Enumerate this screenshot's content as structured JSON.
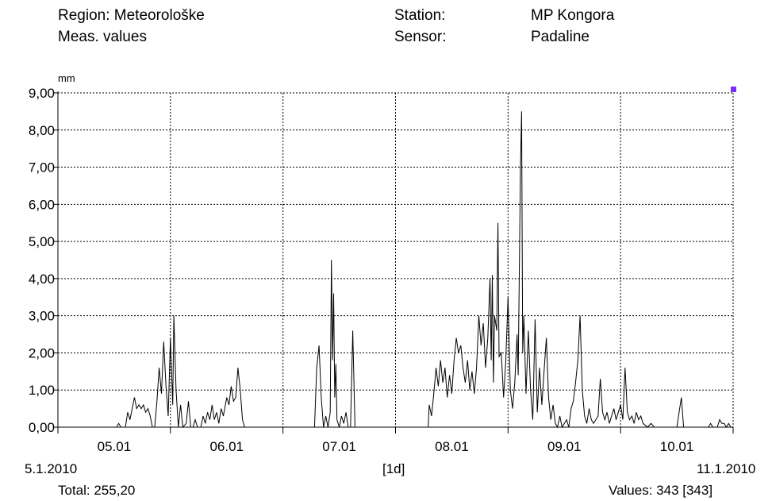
{
  "header": {
    "region_label": "Region:",
    "region_value": "Meteorološke",
    "meas_label": "Meas. values",
    "station_label": "Station:",
    "station_value": "MP Kongora",
    "sensor_label": "Sensor:",
    "sensor_value": "Padaline"
  },
  "footer": {
    "start_date": "5.1.2010",
    "end_date": "11.1.2010",
    "interval": "[1d]",
    "total": "Total: 255,20",
    "values": "Values: 343 [343]"
  },
  "colors": {
    "line": "#000000",
    "grid": "#000000",
    "marker": "#7b2cff"
  },
  "chart_data": {
    "type": "line",
    "ylabel": "mm",
    "ylim": [
      0,
      9
    ],
    "xlim_days": [
      0,
      6
    ],
    "yticks": [
      "0,00",
      "1,00",
      "2,00",
      "3,00",
      "4,00",
      "5,00",
      "6,00",
      "7,00",
      "8,00",
      "9,00"
    ],
    "xticks": [
      {
        "day": 0.5,
        "label": "05.01"
      },
      {
        "day": 1.5,
        "label": "06.01"
      },
      {
        "day": 2.5,
        "label": "07.01"
      },
      {
        "day": 3.5,
        "label": "08.01"
      },
      {
        "day": 4.5,
        "label": "09.01"
      },
      {
        "day": 5.5,
        "label": "10.01"
      }
    ],
    "grid": true,
    "series": [
      {
        "points": [
          [
            0,
            0
          ],
          [
            0.52,
            0
          ],
          [
            0.54,
            0.1
          ],
          [
            0.56,
            0
          ],
          [
            0.6,
            0
          ],
          [
            0.62,
            0.4
          ],
          [
            0.64,
            0.2
          ],
          [
            0.66,
            0.5
          ],
          [
            0.68,
            0.8
          ],
          [
            0.7,
            0.5
          ],
          [
            0.72,
            0.6
          ],
          [
            0.74,
            0.5
          ],
          [
            0.76,
            0.6
          ],
          [
            0.78,
            0.4
          ],
          [
            0.8,
            0.5
          ],
          [
            0.82,
            0.3
          ],
          [
            0.84,
            0
          ],
          [
            0.86,
            0
          ],
          [
            0.88,
            0.7
          ],
          [
            0.9,
            1.6
          ],
          [
            0.92,
            0.9
          ],
          [
            0.94,
            2.3
          ],
          [
            0.96,
            1.1
          ],
          [
            0.98,
            0.3
          ],
          [
            1.0,
            2.4
          ],
          [
            1.02,
            0.6
          ],
          [
            1.03,
            3.0
          ],
          [
            1.05,
            1.0
          ],
          [
            1.07,
            0
          ],
          [
            1.09,
            0.6
          ],
          [
            1.11,
            0
          ],
          [
            1.14,
            0.1
          ],
          [
            1.16,
            0.7
          ],
          [
            1.18,
            0
          ],
          [
            1.2,
            0
          ],
          [
            1.22,
            0.2
          ],
          [
            1.24,
            0
          ],
          [
            1.27,
            0
          ],
          [
            1.29,
            0.3
          ],
          [
            1.31,
            0.1
          ],
          [
            1.33,
            0.4
          ],
          [
            1.35,
            0.2
          ],
          [
            1.37,
            0.6
          ],
          [
            1.39,
            0.2
          ],
          [
            1.41,
            0.4
          ],
          [
            1.43,
            0.1
          ],
          [
            1.45,
            0.5
          ],
          [
            1.47,
            0.3
          ],
          [
            1.5,
            0.8
          ],
          [
            1.52,
            0.6
          ],
          [
            1.54,
            1.1
          ],
          [
            1.56,
            0.7
          ],
          [
            1.58,
            0.8
          ],
          [
            1.6,
            1.6
          ],
          [
            1.62,
            1.0
          ],
          [
            1.64,
            0.2
          ],
          [
            1.66,
            0
          ],
          [
            2.28,
            0
          ],
          [
            2.3,
            1.6
          ],
          [
            2.32,
            2.2
          ],
          [
            2.34,
            0.8
          ],
          [
            2.36,
            0
          ],
          [
            2.38,
            0.3
          ],
          [
            2.4,
            0
          ],
          [
            2.42,
            0.4
          ],
          [
            2.43,
            4.5
          ],
          [
            2.44,
            1.8
          ],
          [
            2.45,
            3.6
          ],
          [
            2.46,
            0.8
          ],
          [
            2.47,
            1.7
          ],
          [
            2.48,
            0.2
          ],
          [
            2.5,
            0
          ],
          [
            2.52,
            0.3
          ],
          [
            2.54,
            0.1
          ],
          [
            2.56,
            0.4
          ],
          [
            2.58,
            0
          ],
          [
            2.6,
            0
          ],
          [
            2.62,
            2.6
          ],
          [
            2.64,
            0
          ],
          [
            3.29,
            0
          ],
          [
            3.3,
            0.6
          ],
          [
            3.32,
            0.3
          ],
          [
            3.34,
            0.9
          ],
          [
            3.36,
            1.6
          ],
          [
            3.38,
            1.1
          ],
          [
            3.4,
            1.8
          ],
          [
            3.42,
            1.2
          ],
          [
            3.44,
            1.6
          ],
          [
            3.46,
            0.8
          ],
          [
            3.48,
            1.4
          ],
          [
            3.5,
            0.9
          ],
          [
            3.52,
            1.8
          ],
          [
            3.54,
            2.4
          ],
          [
            3.56,
            2.0
          ],
          [
            3.58,
            2.2
          ],
          [
            3.6,
            1.6
          ],
          [
            3.62,
            1.2
          ],
          [
            3.64,
            1.8
          ],
          [
            3.66,
            1.0
          ],
          [
            3.68,
            1.5
          ],
          [
            3.7,
            0.9
          ],
          [
            3.72,
            1.6
          ],
          [
            3.74,
            3.0
          ],
          [
            3.76,
            2.2
          ],
          [
            3.78,
            2.8
          ],
          [
            3.8,
            1.6
          ],
          [
            3.82,
            2.4
          ],
          [
            3.84,
            4.0
          ],
          [
            3.85,
            1.8
          ],
          [
            3.86,
            4.1
          ],
          [
            3.87,
            1.2
          ],
          [
            3.88,
            3.0
          ],
          [
            3.9,
            2.6
          ],
          [
            3.91,
            5.5
          ],
          [
            3.92,
            1.9
          ],
          [
            3.94,
            2.0
          ],
          [
            3.96,
            0.8
          ],
          [
            3.98,
            1.8
          ],
          [
            4.0,
            3.5
          ],
          [
            4.02,
            1.0
          ],
          [
            4.04,
            0.5
          ],
          [
            4.06,
            1.2
          ],
          [
            4.08,
            2.5
          ],
          [
            4.09,
            1.4
          ],
          [
            4.11,
            6.9
          ],
          [
            4.12,
            8.5
          ],
          [
            4.13,
            2.0
          ],
          [
            4.14,
            3.0
          ],
          [
            4.16,
            0.9
          ],
          [
            4.18,
            2.6
          ],
          [
            4.2,
            1.0
          ],
          [
            4.22,
            0.2
          ],
          [
            4.24,
            2.9
          ],
          [
            4.26,
            0.4
          ],
          [
            4.28,
            1.6
          ],
          [
            4.3,
            0.6
          ],
          [
            4.32,
            1.5
          ],
          [
            4.34,
            2.4
          ],
          [
            4.36,
            0.8
          ],
          [
            4.38,
            0.2
          ],
          [
            4.4,
            0.6
          ],
          [
            4.42,
            0.1
          ],
          [
            4.44,
            0
          ],
          [
            4.46,
            0.3
          ],
          [
            4.48,
            0
          ],
          [
            4.5,
            0.1
          ],
          [
            4.52,
            0.2
          ],
          [
            4.54,
            0
          ],
          [
            4.56,
            0.5
          ],
          [
            4.58,
            0.7
          ],
          [
            4.6,
            1.2
          ],
          [
            4.62,
            1.8
          ],
          [
            4.64,
            3.0
          ],
          [
            4.66,
            1.0
          ],
          [
            4.68,
            0.3
          ],
          [
            4.7,
            0.1
          ],
          [
            4.72,
            0.5
          ],
          [
            4.74,
            0.2
          ],
          [
            4.76,
            0.1
          ],
          [
            4.78,
            0.2
          ],
          [
            4.8,
            0.3
          ],
          [
            4.82,
            1.3
          ],
          [
            4.84,
            0.4
          ],
          [
            4.86,
            0.2
          ],
          [
            4.88,
            0.4
          ],
          [
            4.9,
            0.1
          ],
          [
            4.92,
            0.3
          ],
          [
            4.94,
            0.5
          ],
          [
            4.96,
            0.2
          ],
          [
            4.98,
            0.4
          ],
          [
            5.0,
            0.6
          ],
          [
            5.02,
            0.2
          ],
          [
            5.04,
            1.6
          ],
          [
            5.06,
            0.4
          ],
          [
            5.08,
            0.2
          ],
          [
            5.1,
            0.3
          ],
          [
            5.12,
            0.1
          ],
          [
            5.14,
            0.4
          ],
          [
            5.16,
            0.2
          ],
          [
            5.18,
            0.3
          ],
          [
            5.2,
            0.1
          ],
          [
            5.24,
            0
          ],
          [
            5.27,
            0.1
          ],
          [
            5.3,
            0
          ],
          [
            5.5,
            0
          ],
          [
            5.52,
            0.4
          ],
          [
            5.54,
            0.8
          ],
          [
            5.56,
            0
          ],
          [
            5.6,
            0
          ],
          [
            5.78,
            0
          ],
          [
            5.8,
            0.1
          ],
          [
            5.82,
            0
          ],
          [
            5.86,
            0
          ],
          [
            5.88,
            0.2
          ],
          [
            5.9,
            0.1
          ],
          [
            5.92,
            0.1
          ],
          [
            5.94,
            0
          ],
          [
            5.96,
            0.1
          ],
          [
            5.98,
            0
          ],
          [
            6.0,
            0
          ]
        ]
      }
    ],
    "marker_point": [
      6.0,
      9.0
    ]
  }
}
